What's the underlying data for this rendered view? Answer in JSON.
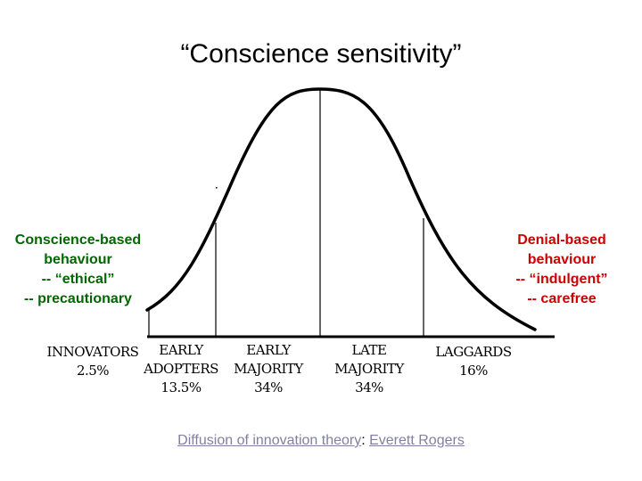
{
  "title": "“Conscience sensitivity”",
  "left_label": [
    "Conscience-based",
    "behaviour",
    "-- “ethical”",
    "-- precautionary"
  ],
  "right_label": [
    "Denial-based",
    "behaviour",
    "-- “indulgent”",
    "-- carefree"
  ],
  "categories": [
    {
      "name_lines": [
        "INNOVATORS"
      ],
      "percent": "2.5%"
    },
    {
      "name_lines": [
        "EARLY",
        "ADOPTERS"
      ],
      "percent": "13.5%"
    },
    {
      "name_lines": [
        "EARLY",
        "MAJORITY"
      ],
      "percent": "34%"
    },
    {
      "name_lines": [
        "LATE",
        "MAJORITY"
      ],
      "percent": "34%"
    },
    {
      "name_lines": [
        "LAGGARDS"
      ],
      "percent": "16%"
    }
  ],
  "footer": {
    "link1": "Diffusion of innovation theory",
    "separator": ": ",
    "link2": "Everett Rogers"
  },
  "colors": {
    "left_label": "#006600",
    "right_label": "#cc0000",
    "link": "#8080a0"
  }
}
